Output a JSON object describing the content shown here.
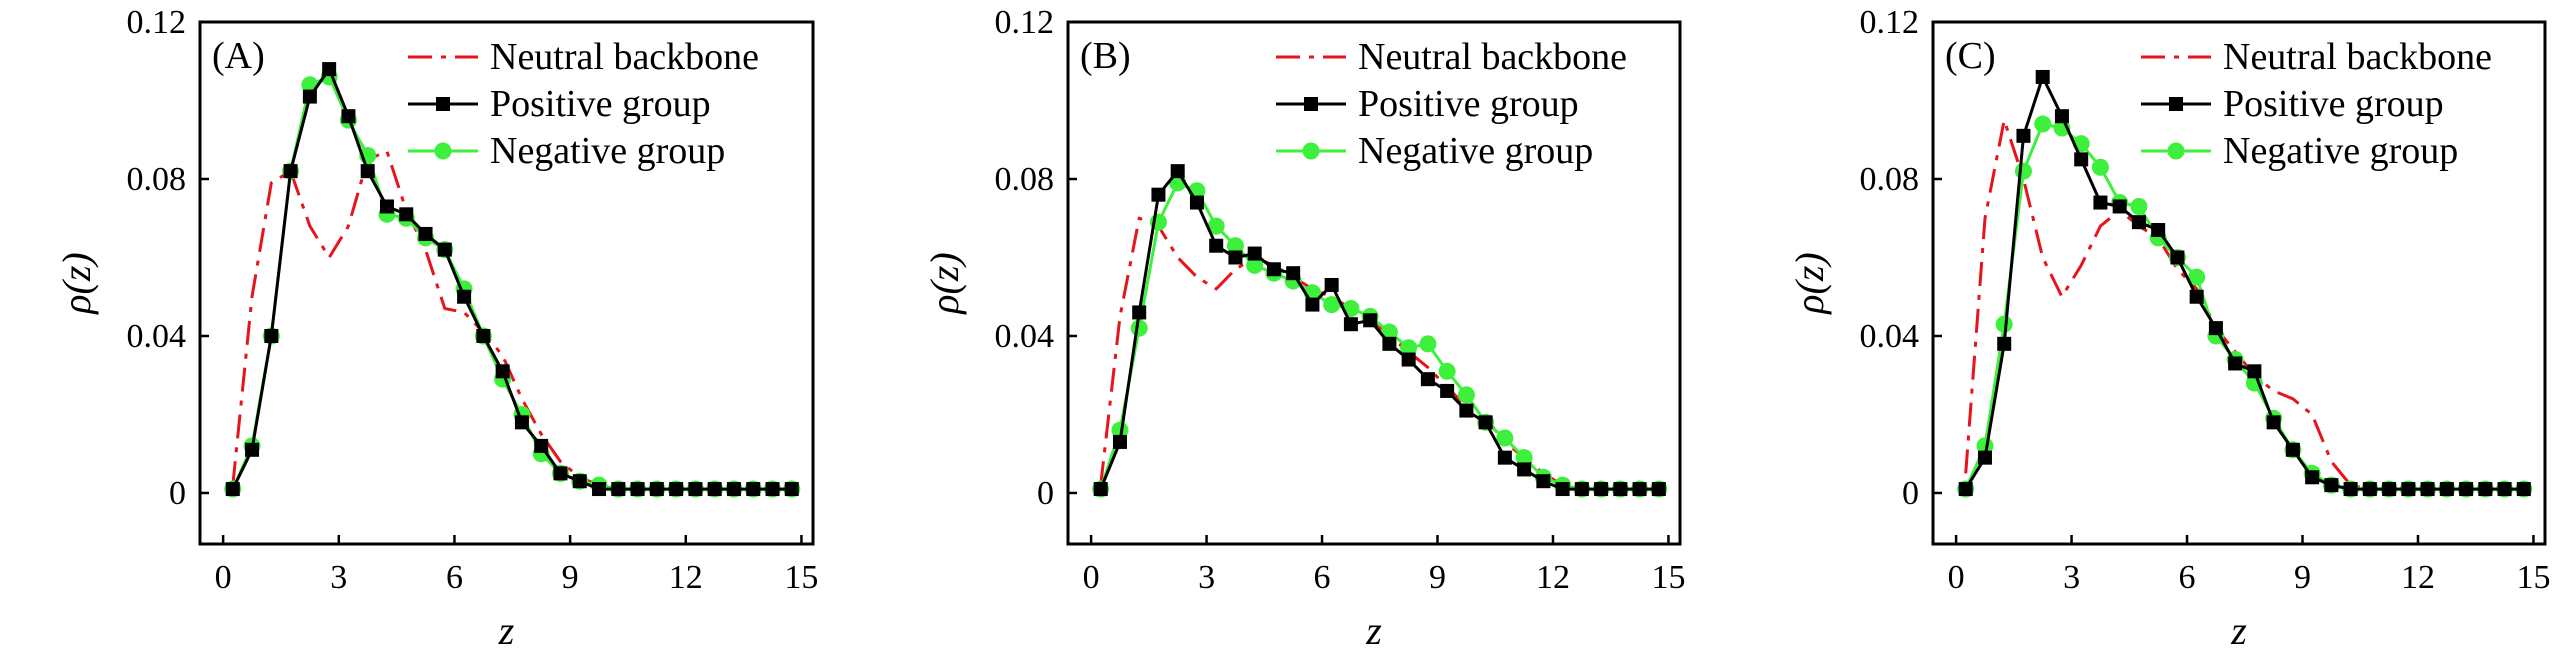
{
  "figure": {
    "panels": [
      "A",
      "B",
      "C"
    ]
  },
  "colors": {
    "neutral": "#e8141b",
    "positive": "#000000",
    "negative": "#3cf03c",
    "axis": "#000000"
  },
  "chart_data": [
    {
      "type": "line",
      "panel_label": "(A)",
      "xlabel": "z",
      "ylabel": "ρ(z)",
      "xlim": [
        -0.6,
        15.3
      ],
      "ylim": [
        -0.013,
        0.12
      ],
      "xticks": [
        0,
        3,
        6,
        9,
        12,
        15
      ],
      "xtick_labels": [
        "0",
        "3",
        "6",
        "9",
        "12",
        "15"
      ],
      "yticks": [
        0,
        0.04,
        0.08,
        0.12
      ],
      "ytick_labels": [
        "0",
        "0.04",
        "0.08",
        "0.12"
      ],
      "legend": [
        "Neutral backbone",
        "Positive group",
        "Negative group"
      ],
      "legend_position": "top-right",
      "series": [
        {
          "name": "Neutral backbone",
          "style": "dash-dot",
          "x": [
            0.25,
            0.75,
            1.25,
            1.75,
            2.25,
            2.75,
            3.25,
            3.75,
            4.25,
            4.75,
            5.25,
            5.75,
            6.25,
            6.75,
            7.25,
            7.75,
            8.25,
            8.75,
            9.25,
            9.75,
            10.25,
            10.75,
            11.25,
            11.75,
            12.25,
            12.75,
            13.25,
            13.75,
            14.25,
            14.75
          ],
          "y": [
            0.002,
            0.05,
            0.079,
            0.082,
            0.068,
            0.06,
            0.068,
            0.085,
            0.087,
            0.072,
            0.062,
            0.047,
            0.046,
            0.041,
            0.035,
            0.024,
            0.015,
            0.008,
            0.004,
            0.002,
            0.001,
            0.001,
            0.001,
            0.001,
            0.001,
            0.001,
            0.001,
            0.001,
            0.001,
            0.001
          ]
        },
        {
          "name": "Positive group",
          "style": "square",
          "x": [
            0.25,
            0.75,
            1.25,
            1.75,
            2.25,
            2.75,
            3.25,
            3.75,
            4.25,
            4.75,
            5.25,
            5.75,
            6.25,
            6.75,
            7.25,
            7.75,
            8.25,
            8.75,
            9.25,
            9.75,
            10.25,
            10.75,
            11.25,
            11.75,
            12.25,
            12.75,
            13.25,
            13.75,
            14.25,
            14.75
          ],
          "y": [
            0.001,
            0.011,
            0.04,
            0.082,
            0.101,
            0.108,
            0.096,
            0.082,
            0.073,
            0.071,
            0.066,
            0.062,
            0.05,
            0.04,
            0.031,
            0.018,
            0.012,
            0.005,
            0.003,
            0.001,
            0.001,
            0.001,
            0.001,
            0.001,
            0.001,
            0.001,
            0.001,
            0.001,
            0.001,
            0.001
          ]
        },
        {
          "name": "Negative group",
          "style": "circle",
          "x": [
            0.25,
            0.75,
            1.25,
            1.75,
            2.25,
            2.75,
            3.25,
            3.75,
            4.25,
            4.75,
            5.25,
            5.75,
            6.25,
            6.75,
            7.25,
            7.75,
            8.25,
            8.75,
            9.25,
            9.75,
            10.25,
            10.75,
            11.25,
            11.75,
            12.25,
            12.75,
            13.25,
            13.75,
            14.25,
            14.75
          ],
          "y": [
            0.001,
            0.012,
            0.04,
            0.082,
            0.104,
            0.106,
            0.095,
            0.086,
            0.071,
            0.07,
            0.065,
            0.062,
            0.052,
            0.04,
            0.029,
            0.02,
            0.01,
            0.005,
            0.003,
            0.002,
            0.001,
            0.001,
            0.001,
            0.001,
            0.001,
            0.001,
            0.001,
            0.001,
            0.001,
            0.001
          ]
        }
      ]
    },
    {
      "type": "line",
      "panel_label": "(B)",
      "xlabel": "z",
      "ylabel": "ρ(z)",
      "xlim": [
        -0.6,
        15.3
      ],
      "ylim": [
        -0.013,
        0.12
      ],
      "xticks": [
        0,
        3,
        6,
        9,
        12,
        15
      ],
      "xtick_labels": [
        "0",
        "3",
        "6",
        "9",
        "12",
        "15"
      ],
      "yticks": [
        0,
        0.04,
        0.08,
        0.12
      ],
      "ytick_labels": [
        "0",
        "0.04",
        "0.08",
        "0.12"
      ],
      "legend": [
        "Neutral backbone",
        "Positive group",
        "Negative group"
      ],
      "legend_position": "top-right",
      "series": [
        {
          "name": "Neutral backbone",
          "style": "dash-dot",
          "x": [
            0.25,
            0.75,
            1.25,
            1.75,
            2.25,
            2.75,
            3.25,
            3.75,
            4.25,
            4.75,
            5.25,
            5.75,
            6.25,
            6.75,
            7.25,
            7.75,
            8.25,
            8.75,
            9.25,
            9.75,
            10.25,
            10.75,
            11.25,
            11.75,
            12.25,
            12.75,
            13.25,
            13.75,
            14.25,
            14.75
          ],
          "y": [
            0.002,
            0.045,
            0.07,
            0.068,
            0.06,
            0.055,
            0.052,
            0.057,
            0.06,
            0.058,
            0.055,
            0.052,
            0.05,
            0.047,
            0.044,
            0.04,
            0.036,
            0.032,
            0.027,
            0.022,
            0.019,
            0.013,
            0.009,
            0.005,
            0.002,
            0.001,
            0.001,
            0.001,
            0.001,
            0.001
          ]
        },
        {
          "name": "Positive group",
          "style": "square",
          "x": [
            0.25,
            0.75,
            1.25,
            1.75,
            2.25,
            2.75,
            3.25,
            3.75,
            4.25,
            4.75,
            5.25,
            5.75,
            6.25,
            6.75,
            7.25,
            7.75,
            8.25,
            8.75,
            9.25,
            9.75,
            10.25,
            10.75,
            11.25,
            11.75,
            12.25,
            12.75,
            13.25,
            13.75,
            14.25,
            14.75
          ],
          "y": [
            0.001,
            0.013,
            0.046,
            0.076,
            0.082,
            0.074,
            0.063,
            0.06,
            0.061,
            0.057,
            0.056,
            0.048,
            0.053,
            0.043,
            0.044,
            0.038,
            0.034,
            0.029,
            0.026,
            0.021,
            0.018,
            0.009,
            0.006,
            0.003,
            0.001,
            0.001,
            0.001,
            0.001,
            0.001,
            0.001
          ]
        },
        {
          "name": "Negative group",
          "style": "circle",
          "x": [
            0.25,
            0.75,
            1.25,
            1.75,
            2.25,
            2.75,
            3.25,
            3.75,
            4.25,
            4.75,
            5.25,
            5.75,
            6.25,
            6.75,
            7.25,
            7.75,
            8.25,
            8.75,
            9.25,
            9.75,
            10.25,
            10.75,
            11.25,
            11.75,
            12.25,
            12.75,
            13.25,
            13.75,
            14.25,
            14.75
          ],
          "y": [
            0.001,
            0.016,
            0.042,
            0.069,
            0.079,
            0.077,
            0.068,
            0.063,
            0.058,
            0.056,
            0.054,
            0.051,
            0.048,
            0.047,
            0.045,
            0.041,
            0.037,
            0.038,
            0.031,
            0.025,
            0.018,
            0.014,
            0.009,
            0.004,
            0.002,
            0.001,
            0.001,
            0.001,
            0.001,
            0.001
          ]
        }
      ]
    },
    {
      "type": "line",
      "panel_label": "(C)",
      "xlabel": "z",
      "ylabel": "ρ(z)",
      "xlim": [
        -0.6,
        15.3
      ],
      "ylim": [
        -0.013,
        0.12
      ],
      "xticks": [
        0,
        3,
        6,
        9,
        12,
        15
      ],
      "xtick_labels": [
        "0",
        "3",
        "6",
        "9",
        "12",
        "15"
      ],
      "yticks": [
        0,
        0.04,
        0.08,
        0.12
      ],
      "ytick_labels": [
        "0",
        "0.04",
        "0.08",
        "0.12"
      ],
      "legend": [
        "Neutral backbone",
        "Positive group",
        "Negative group"
      ],
      "legend_position": "top-right",
      "series": [
        {
          "name": "Neutral backbone",
          "style": "dash-dot",
          "x": [
            0.25,
            0.75,
            1.25,
            1.75,
            2.25,
            2.75,
            3.25,
            3.75,
            4.25,
            4.75,
            5.25,
            5.75,
            6.25,
            6.75,
            7.25,
            7.75,
            8.25,
            8.75,
            9.25,
            9.75,
            10.25,
            10.75,
            11.25,
            11.75,
            12.25,
            12.75,
            13.25,
            13.75,
            14.25,
            14.75
          ],
          "y": [
            0.005,
            0.07,
            0.095,
            0.08,
            0.06,
            0.05,
            0.058,
            0.068,
            0.072,
            0.068,
            0.065,
            0.057,
            0.052,
            0.042,
            0.036,
            0.03,
            0.026,
            0.024,
            0.02,
            0.008,
            0.002,
            0.001,
            0.001,
            0.001,
            0.001,
            0.001,
            0.001,
            0.001,
            0.001,
            0.001
          ]
        },
        {
          "name": "Positive group",
          "style": "square",
          "x": [
            0.25,
            0.75,
            1.25,
            1.75,
            2.25,
            2.75,
            3.25,
            3.75,
            4.25,
            4.75,
            5.25,
            5.75,
            6.25,
            6.75,
            7.25,
            7.75,
            8.25,
            8.75,
            9.25,
            9.75,
            10.25,
            10.75,
            11.25,
            11.75,
            12.25,
            12.75,
            13.25,
            13.75,
            14.25,
            14.75
          ],
          "y": [
            0.001,
            0.009,
            0.038,
            0.091,
            0.106,
            0.096,
            0.085,
            0.074,
            0.073,
            0.069,
            0.067,
            0.06,
            0.05,
            0.042,
            0.033,
            0.031,
            0.018,
            0.011,
            0.004,
            0.002,
            0.001,
            0.001,
            0.001,
            0.001,
            0.001,
            0.001,
            0.001,
            0.001,
            0.001,
            0.001
          ]
        },
        {
          "name": "Negative group",
          "style": "circle",
          "x": [
            0.25,
            0.75,
            1.25,
            1.75,
            2.25,
            2.75,
            3.25,
            3.75,
            4.25,
            4.75,
            5.25,
            5.75,
            6.25,
            6.75,
            7.25,
            7.75,
            8.25,
            8.75,
            9.25,
            9.75,
            10.25,
            10.75,
            11.25,
            11.75,
            12.25,
            12.75,
            13.25,
            13.75,
            14.25,
            14.75
          ],
          "y": [
            0.001,
            0.012,
            0.043,
            0.082,
            0.094,
            0.093,
            0.089,
            0.083,
            0.074,
            0.073,
            0.065,
            0.06,
            0.055,
            0.04,
            0.034,
            0.028,
            0.019,
            0.011,
            0.005,
            0.002,
            0.001,
            0.001,
            0.001,
            0.001,
            0.001,
            0.001,
            0.001,
            0.001,
            0.001,
            0.001
          ]
        }
      ]
    }
  ]
}
